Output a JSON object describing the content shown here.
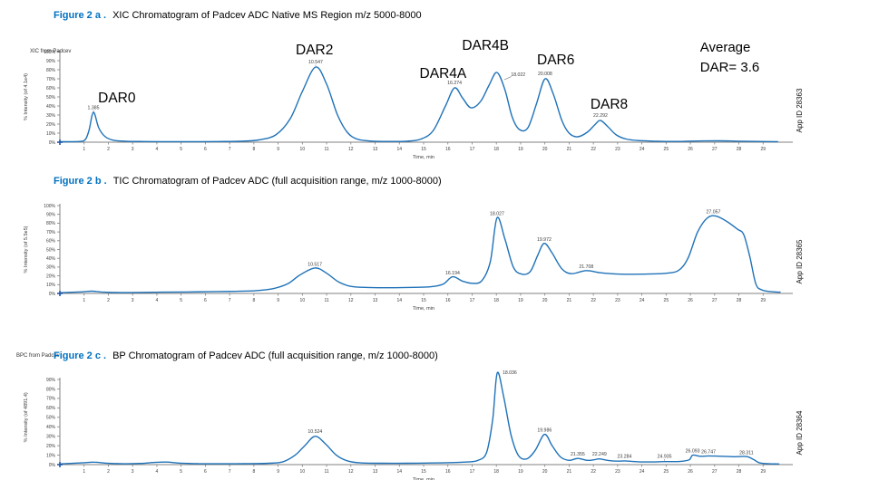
{
  "colors": {
    "accent_caption": "#0070C0",
    "trace": "#1f72b8",
    "axis": "#808080",
    "tick_text": "#3a3a3a",
    "peak_text": "#3a3a3a",
    "annotation_text": "#000000",
    "origin_marker": "#2255aa"
  },
  "figures": [
    {
      "label": "Figure 2 a .",
      "caption": "XIC Chromatogram of Padcev ADC Native MS Region m/z 5000-8000"
    },
    {
      "label": "Figure 2 b .",
      "caption": "TIC Chromatogram of Padcev ADC (full acquisition range, m/z 1000-8000)"
    },
    {
      "label": "Figure 2 c .",
      "caption": "BP Chromatogram of Padcev ADC (full acquisition range, m/z 1000-8000)"
    }
  ],
  "chart_data": [
    {
      "name": "xic-chromatogram",
      "type": "line",
      "small_label": "XIC from Padcev",
      "xlabel": "Time, min",
      "ylabel": "% Intensity (of 4.1e4)",
      "app_id": "App ID 28363",
      "xlim": [
        0,
        30
      ],
      "ylim": [
        0,
        100
      ],
      "x_ticks": [
        1,
        2,
        3,
        4,
        5,
        6,
        7,
        8,
        9,
        10,
        11,
        12,
        13,
        14,
        15,
        16,
        17,
        18,
        19,
        20,
        21,
        22,
        23,
        24,
        25,
        26,
        27,
        28,
        29
      ],
      "y_ticks": [
        100,
        90,
        80,
        70,
        60,
        50,
        40,
        30,
        20,
        10,
        0
      ],
      "grid": false,
      "series": [
        {
          "name": "XIC",
          "points": [
            [
              0.05,
              0.5
            ],
            [
              0.8,
              0.8
            ],
            [
              1.05,
              3
            ],
            [
              1.2,
              13
            ],
            [
              1.385,
              33
            ],
            [
              1.6,
              16
            ],
            [
              1.85,
              6.5
            ],
            [
              2.2,
              2.2
            ],
            [
              2.7,
              1.1
            ],
            [
              3.5,
              0.7
            ],
            [
              4.5,
              0.6
            ],
            [
              5.5,
              0.6
            ],
            [
              6.5,
              0.7
            ],
            [
              7.4,
              1
            ],
            [
              8.2,
              2.5
            ],
            [
              8.9,
              8
            ],
            [
              9.5,
              26
            ],
            [
              10.0,
              56
            ],
            [
              10.547,
              83
            ],
            [
              11.0,
              64
            ],
            [
              11.45,
              30
            ],
            [
              11.85,
              11
            ],
            [
              12.25,
              3.5
            ],
            [
              12.8,
              1.3
            ],
            [
              13.5,
              0.8
            ],
            [
              14.3,
              1.1
            ],
            [
              14.9,
              3.5
            ],
            [
              15.4,
              13
            ],
            [
              15.9,
              40
            ],
            [
              16.274,
              60
            ],
            [
              16.6,
              49
            ],
            [
              16.95,
              38
            ],
            [
              17.35,
              45
            ],
            [
              17.7,
              63
            ],
            [
              18.022,
              77
            ],
            [
              18.35,
              58
            ],
            [
              18.65,
              28
            ],
            [
              18.95,
              14
            ],
            [
              19.3,
              16
            ],
            [
              19.65,
              42
            ],
            [
              20.008,
              70
            ],
            [
              20.35,
              53
            ],
            [
              20.7,
              24
            ],
            [
              21.0,
              10
            ],
            [
              21.35,
              6
            ],
            [
              21.75,
              11
            ],
            [
              22.05,
              19
            ],
            [
              22.292,
              24
            ],
            [
              22.6,
              17
            ],
            [
              22.95,
              8
            ],
            [
              23.35,
              3.5
            ],
            [
              23.85,
              1.8
            ],
            [
              24.6,
              1.1
            ],
            [
              25.4,
              0.8
            ],
            [
              26.3,
              1.3
            ],
            [
              27.2,
              1.5
            ],
            [
              28.0,
              1.1
            ],
            [
              28.8,
              0.8
            ],
            [
              29.6,
              0.6
            ]
          ]
        }
      ],
      "peak_labels": [
        {
          "text": "1.385",
          "x": 1.385,
          "y": 36.5,
          "leader": [
            1.385,
            35.0,
            1.385,
            33.8
          ]
        },
        {
          "text": "10.547",
          "x": 10.547,
          "y": 87,
          "leader": [
            10.547,
            85.5,
            10.547,
            84.2
          ]
        },
        {
          "text": "16.274",
          "x": 16.274,
          "y": 64
        },
        {
          "text": "18.022",
          "x": 18.9,
          "y": 73,
          "leader": [
            18.62,
            72.5,
            18.33,
            69
          ]
        },
        {
          "text": "20.008",
          "x": 20.008,
          "y": 74
        },
        {
          "text": "22.292",
          "x": 22.292,
          "y": 28
        }
      ],
      "dar_labels": [
        {
          "text": "DAR0",
          "x": 2.35,
          "y": 44
        },
        {
          "text": "DAR2",
          "x": 10.5,
          "y": 97
        },
        {
          "text": "DAR4A",
          "x": 15.8,
          "y": 71
        },
        {
          "text": "DAR4B",
          "x": 17.55,
          "y": 102
        },
        {
          "text": "DAR6",
          "x": 20.45,
          "y": 86
        },
        {
          "text": "DAR8",
          "x": 22.65,
          "y": 37
        }
      ],
      "note": {
        "lines": [
          "Average",
          "DAR= 3.6"
        ],
        "x": 26.4,
        "y": 100,
        "line_step": 22
      }
    },
    {
      "name": "tic-chromatogram",
      "type": "line",
      "small_label": "",
      "xlabel": "Time, min",
      "ylabel": "% Intensity (of 5.5e5)",
      "app_id": "App ID 28365",
      "xlim": [
        0,
        30
      ],
      "ylim": [
        0,
        100
      ],
      "x_ticks": [
        1,
        2,
        3,
        4,
        5,
        6,
        7,
        8,
        9,
        10,
        11,
        12,
        13,
        14,
        15,
        16,
        17,
        18,
        19,
        20,
        21,
        22,
        23,
        24,
        25,
        26,
        27,
        28,
        29
      ],
      "y_ticks": [
        100,
        90,
        80,
        70,
        60,
        50,
        40,
        30,
        20,
        10,
        0
      ],
      "grid": false,
      "series": [
        {
          "name": "TIC",
          "points": [
            [
              0.05,
              0.8
            ],
            [
              0.9,
              1.8
            ],
            [
              1.3,
              2.6
            ],
            [
              1.7,
              1.7
            ],
            [
              2.3,
              1
            ],
            [
              3.2,
              1.1
            ],
            [
              4.2,
              1.4
            ],
            [
              5.2,
              1.7
            ],
            [
              6.2,
              2
            ],
            [
              7.2,
              2.4
            ],
            [
              8.1,
              3.2
            ],
            [
              8.8,
              5.5
            ],
            [
              9.4,
              11
            ],
            [
              9.9,
              21
            ],
            [
              10.517,
              29
            ],
            [
              11.0,
              23
            ],
            [
              11.5,
              13
            ],
            [
              12.0,
              8
            ],
            [
              12.7,
              6.8
            ],
            [
              13.6,
              6.5
            ],
            [
              14.6,
              6.9
            ],
            [
              15.3,
              7.6
            ],
            [
              15.8,
              10.5
            ],
            [
              16.194,
              19
            ],
            [
              16.6,
              14
            ],
            [
              17.0,
              11.5
            ],
            [
              17.4,
              14.5
            ],
            [
              17.75,
              36
            ],
            [
              18.027,
              86
            ],
            [
              18.35,
              62
            ],
            [
              18.7,
              30
            ],
            [
              19.05,
              22
            ],
            [
              19.4,
              25
            ],
            [
              19.7,
              43
            ],
            [
              19.972,
              57
            ],
            [
              20.3,
              46
            ],
            [
              20.7,
              28
            ],
            [
              21.1,
              22.5
            ],
            [
              21.708,
              26
            ],
            [
              22.3,
              23.5
            ],
            [
              23.1,
              22
            ],
            [
              24.0,
              22
            ],
            [
              24.9,
              22.8
            ],
            [
              25.5,
              26
            ],
            [
              25.9,
              40
            ],
            [
              26.3,
              70
            ],
            [
              26.7,
              86
            ],
            [
              27.057,
              88
            ],
            [
              27.5,
              82
            ],
            [
              27.95,
              73
            ],
            [
              28.2,
              67
            ],
            [
              28.45,
              42
            ],
            [
              28.7,
              11
            ],
            [
              28.95,
              4
            ],
            [
              29.35,
              2
            ],
            [
              29.7,
              1.4
            ]
          ]
        }
      ],
      "peak_labels": [
        {
          "text": "10.517",
          "x": 10.517,
          "y": 31.5
        },
        {
          "text": "16.194",
          "x": 16.194,
          "y": 21.5
        },
        {
          "text": "18.027",
          "x": 18.027,
          "y": 89
        },
        {
          "text": "19.972",
          "x": 19.972,
          "y": 60
        },
        {
          "text": "21.708",
          "x": 21.708,
          "y": 29
        },
        {
          "text": "27.057",
          "x": 26.95,
          "y": 91
        }
      ],
      "dar_labels": [],
      "note": null
    },
    {
      "name": "bpc-chromatogram",
      "type": "line",
      "small_label": "BPC from Padcev",
      "xlabel": "Time, min",
      "ylabel": "% Intensity (of 4891.4)",
      "app_id": "App ID 28364",
      "xlim": [
        0,
        30
      ],
      "ylim": [
        0,
        100
      ],
      "x_ticks": [
        1,
        2,
        3,
        4,
        5,
        6,
        7,
        8,
        9,
        10,
        11,
        12,
        13,
        14,
        15,
        16,
        17,
        18,
        19,
        20,
        21,
        22,
        23,
        24,
        25,
        26,
        27,
        28,
        29
      ],
      "y_ticks": [
        90,
        80,
        70,
        60,
        50,
        40,
        30,
        20,
        10,
        0
      ],
      "grid": false,
      "series": [
        {
          "name": "BPC",
          "points": [
            [
              0.05,
              0.8
            ],
            [
              0.9,
              1.8
            ],
            [
              1.4,
              2.6
            ],
            [
              1.9,
              1.5
            ],
            [
              2.6,
              0.9
            ],
            [
              3.3,
              1.2
            ],
            [
              3.9,
              2.3
            ],
            [
              4.4,
              2.7
            ],
            [
              4.9,
              1.6
            ],
            [
              5.7,
              1
            ],
            [
              6.6,
              0.9
            ],
            [
              7.6,
              1
            ],
            [
              8.6,
              1.4
            ],
            [
              9.2,
              3
            ],
            [
              9.7,
              10
            ],
            [
              10.1,
              20
            ],
            [
              10.524,
              30
            ],
            [
              10.95,
              22
            ],
            [
              11.4,
              10
            ],
            [
              11.85,
              4
            ],
            [
              12.4,
              1.8
            ],
            [
              13.3,
              1.4
            ],
            [
              14.3,
              1.4
            ],
            [
              15.3,
              1.7
            ],
            [
              16.1,
              2.1
            ],
            [
              16.8,
              2.8
            ],
            [
              17.25,
              4.5
            ],
            [
              17.6,
              13
            ],
            [
              17.85,
              48
            ],
            [
              18.036,
              97
            ],
            [
              18.3,
              72
            ],
            [
              18.6,
              32
            ],
            [
              18.9,
              10
            ],
            [
              19.25,
              6
            ],
            [
              19.6,
              15
            ],
            [
              19.986,
              32
            ],
            [
              20.3,
              20
            ],
            [
              20.65,
              8
            ],
            [
              21.0,
              4.5
            ],
            [
              21.355,
              6.5
            ],
            [
              21.75,
              4.5
            ],
            [
              22.05,
              5.2
            ],
            [
              22.249,
              6
            ],
            [
              22.65,
              4.2
            ],
            [
              23.05,
              3.6
            ],
            [
              23.284,
              3.9
            ],
            [
              23.85,
              3
            ],
            [
              24.45,
              2.8
            ],
            [
              24.935,
              3.2
            ],
            [
              25.55,
              3.3
            ],
            [
              25.95,
              5
            ],
            [
              26.093,
              10
            ],
            [
              26.4,
              8.8
            ],
            [
              26.747,
              9.2
            ],
            [
              27.3,
              8.8
            ],
            [
              27.85,
              8.3
            ],
            [
              28.311,
              8.5
            ],
            [
              28.6,
              5.5
            ],
            [
              28.85,
              1.8
            ],
            [
              29.25,
              0.9
            ],
            [
              29.65,
              0.7
            ]
          ]
        }
      ],
      "peak_labels": [
        {
          "text": "10.524",
          "x": 10.524,
          "y": 33.5
        },
        {
          "text": "18.036",
          "x": 18.55,
          "y": 96
        },
        {
          "text": "19.986",
          "x": 19.986,
          "y": 35
        },
        {
          "text": "21.355",
          "x": 21.355,
          "y": 9.5
        },
        {
          "text": "22.249",
          "x": 22.249,
          "y": 9.5
        },
        {
          "text": "23.284",
          "x": 23.284,
          "y": 7
        },
        {
          "text": "24.935",
          "x": 24.935,
          "y": 7,
          "leader": [
            24.935,
            5.6,
            24.935,
            4.2
          ]
        },
        {
          "text": "26.093",
          "x": 26.093,
          "y": 13
        },
        {
          "text": "26.747",
          "x": 26.747,
          "y": 12
        },
        {
          "text": "28.311",
          "x": 28.311,
          "y": 11
        }
      ],
      "dar_labels": [],
      "note": null
    }
  ]
}
